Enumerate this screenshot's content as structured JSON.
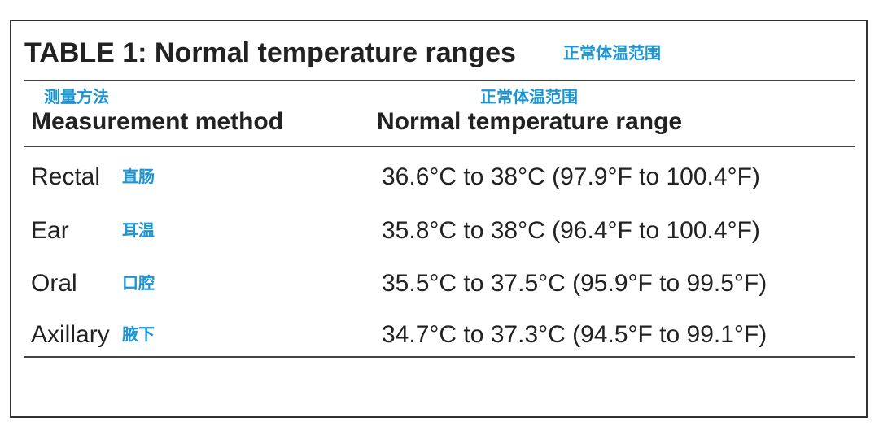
{
  "title": {
    "text": "TABLE 1: Normal temperature ranges",
    "annotation": "正常体温范围"
  },
  "table": {
    "header": [
      {
        "text": "Measurement method",
        "annotation": "测量方法"
      },
      {
        "text": "Normal temperature range",
        "annotation": "正常体温范围"
      }
    ],
    "rows": [
      {
        "method": "Rectal",
        "annotation": "直肠",
        "range": "36.6°C to 38°C (97.9°F to 100.4°F)"
      },
      {
        "method": "Ear",
        "annotation": "耳温",
        "range": "35.8°C to 38°C (96.4°F to 100.4°F)"
      },
      {
        "method": "Oral",
        "annotation": "口腔",
        "range": "35.5°C to 37.5°C (95.9°F to 99.5°F)"
      },
      {
        "method": "Axillary",
        "annotation": "腋下",
        "range": "34.7°C to 37.3°C (94.5°F to 99.1°F)"
      }
    ]
  }
}
